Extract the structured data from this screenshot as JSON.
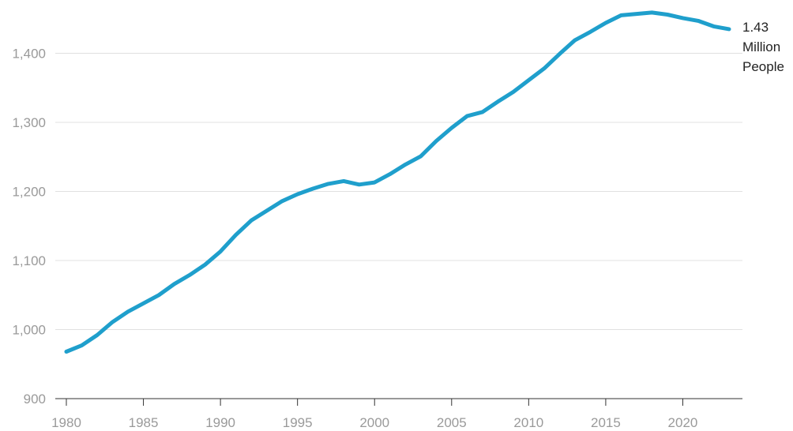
{
  "chart_data": {
    "type": "line",
    "title": "",
    "xlabel": "",
    "ylabel": "",
    "xlim": [
      1980,
      2023
    ],
    "ylim": [
      900,
      1460
    ],
    "grid": true,
    "x_ticks": [
      1980,
      1985,
      1990,
      1995,
      2000,
      2005,
      2010,
      2015,
      2020
    ],
    "x_tick_labels": [
      "1980",
      "1985",
      "1990",
      "1995",
      "2000",
      "2005",
      "2010",
      "2015",
      "2020"
    ],
    "y_ticks": [
      900,
      1000,
      1100,
      1200,
      1300,
      1400
    ],
    "y_tick_labels": [
      "900",
      "1,000",
      "1,100",
      "1,200",
      "1,300",
      "1,400"
    ],
    "series": [
      {
        "color": "#1f9fcc",
        "x": [
          1980,
          1981,
          1982,
          1983,
          1984,
          1985,
          1986,
          1987,
          1988,
          1989,
          1990,
          1991,
          1992,
          1993,
          1994,
          1995,
          1996,
          1997,
          1998,
          1999,
          2000,
          2001,
          2002,
          2003,
          2004,
          2005,
          2006,
          2007,
          2008,
          2009,
          2010,
          2011,
          2012,
          2013,
          2014,
          2015,
          2016,
          2017,
          2018,
          2019,
          2020,
          2021,
          2022,
          2023
        ],
        "values": [
          968,
          977,
          992,
          1011,
          1026,
          1038,
          1050,
          1066,
          1079,
          1094,
          1113,
          1137,
          1158,
          1172,
          1186,
          1196,
          1204,
          1211,
          1215,
          1210,
          1213,
          1225,
          1239,
          1251,
          1273,
          1292,
          1309,
          1315,
          1330,
          1344,
          1361,
          1378,
          1399,
          1419,
          1431,
          1444,
          1455,
          1457,
          1459,
          1456,
          1451,
          1447,
          1439,
          1435
        ]
      }
    ],
    "end_label": [
      "1.43",
      "Million",
      "People"
    ]
  },
  "colors": {
    "line": "#1f9fcc",
    "grid": "#e0e0e0",
    "axis": "#333333",
    "tick_text": "#9a9a9a",
    "end_label_text": "#222222"
  }
}
